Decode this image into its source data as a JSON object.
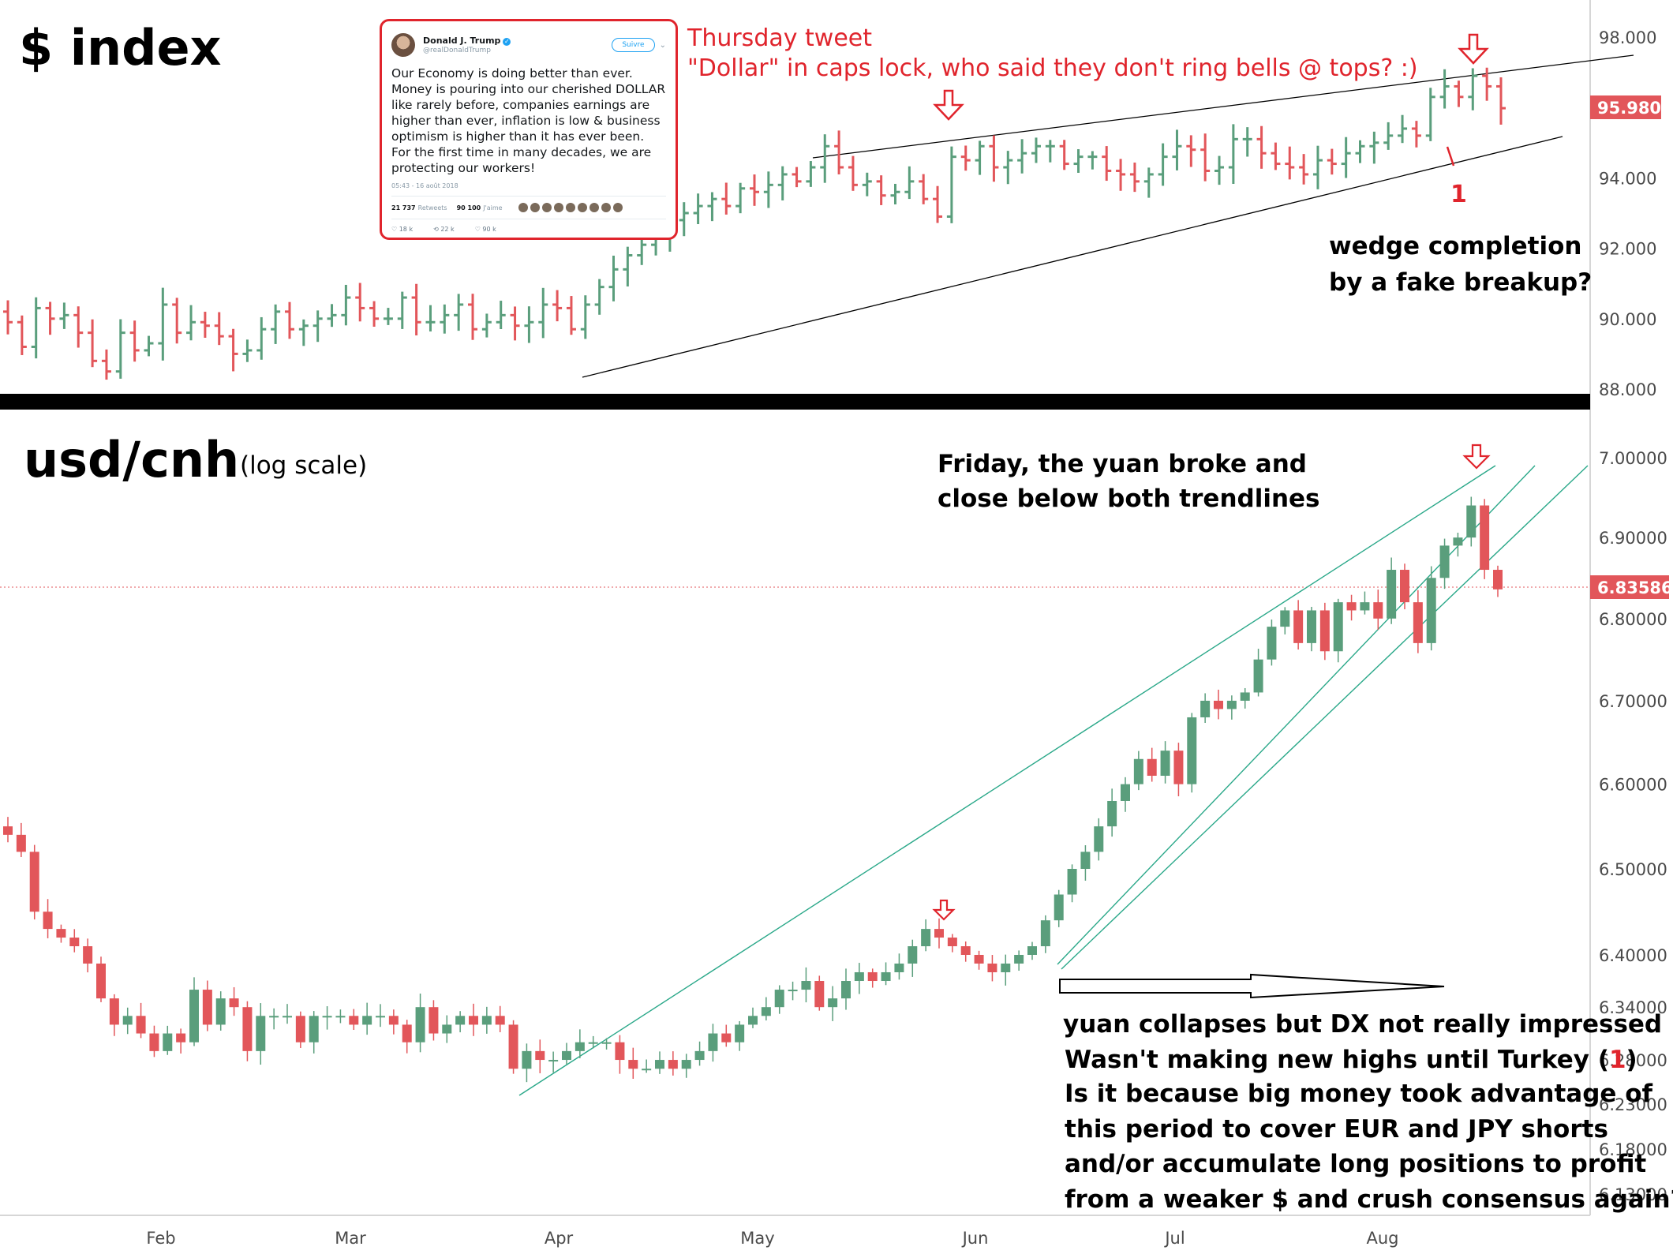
{
  "colors": {
    "up": "#5a9e7c",
    "down": "#e2565a",
    "trend_top": "#000000",
    "trend_bottom": "#2aa889",
    "annotation": "#e0242c"
  },
  "top_panel": {
    "title": "$ index",
    "price_tag": "95.980"
  },
  "bottom_panel": {
    "title": "usd/cnh",
    "subtitle": "(log scale)",
    "price_tag": "6.83586"
  },
  "annotations": {
    "thursday_line1": "Thursday tweet",
    "thursday_line2": "\"Dollar\" in caps lock, who said they don't ring bells @ tops? :)",
    "wedge_line1": "wedge completion",
    "wedge_line2": "by a fake breakup?",
    "marker_1": "1",
    "friday_line1": "Friday, the yuan broke and",
    "friday_line2": "close below both trendlines",
    "bottom_line1": "yuan collapses but DX not really impressed",
    "bottom_line2_pre": "Wasn't making new highs until Turkey (",
    "bottom_line2_num": "1",
    "bottom_line2_post": ")",
    "bottom_line3": "Is it because big money took advantage of",
    "bottom_line4": "this period to cover EUR and JPY shorts",
    "bottom_line5": "and/or accumulate long positions to profit",
    "bottom_line6": "from a weaker $ and crush consensus again?"
  },
  "tweet": {
    "name": "Donald J. Trump",
    "handle": "@realDonaldTrump",
    "follow_label": "Suivre",
    "text": "Our Economy is doing better than ever. Money is pouring into our cherished DOLLAR like rarely before, companies earnings are higher than ever, inflation is low & business optimism is higher than it has ever been. For the first time in many decades, we are protecting our workers!",
    "date": "05:43 - 16 août 2018",
    "retweets": "21 737",
    "retweets_label": "Retweets",
    "likes": "90 100",
    "likes_label": "J'aime",
    "replies_count": "18 k",
    "rt_count": "22 k",
    "like_count": "90 k"
  },
  "chart_data": [
    {
      "type": "ohlc",
      "title": "$ index",
      "x_months": [
        "Feb",
        "Mar",
        "Apr",
        "May",
        "Jun",
        "Jul",
        "Aug"
      ],
      "ylim": [
        88,
        98.6
      ],
      "y_ticks": [
        "88.000",
        "90.000",
        "92.000",
        "94.000",
        "96.000",
        "98.000"
      ],
      "last_price": 95.98,
      "closes": [
        89.9,
        89.2,
        90.3,
        90.0,
        90.1,
        89.6,
        88.8,
        88.5,
        89.6,
        89.1,
        89.3,
        90.4,
        89.6,
        89.9,
        89.8,
        89.5,
        89.0,
        89.1,
        89.7,
        90.2,
        89.7,
        89.8,
        90.0,
        90.1,
        90.6,
        90.3,
        90.0,
        90.0,
        90.6,
        89.9,
        89.9,
        90.1,
        90.4,
        89.7,
        89.9,
        90.1,
        89.8,
        89.9,
        90.4,
        90.3,
        89.7,
        90.4,
        90.9,
        91.4,
        91.8,
        92.1,
        92.4,
        92.8,
        93.0,
        93.2,
        93.4,
        93.2,
        93.7,
        93.6,
        93.8,
        94.1,
        93.9,
        94.3,
        94.9,
        94.3,
        93.8,
        93.9,
        93.5,
        93.6,
        93.9,
        93.4,
        92.9,
        94.6,
        94.5,
        94.9,
        94.3,
        94.5,
        94.7,
        94.9,
        94.9,
        94.4,
        94.6,
        94.6,
        94.2,
        94.1,
        93.9,
        94.1,
        94.6,
        94.9,
        94.8,
        94.2,
        94.3,
        95.1,
        95.1,
        94.7,
        94.4,
        94.3,
        94.1,
        94.5,
        94.4,
        94.7,
        94.9,
        95.0,
        95.2,
        95.4,
        95.2,
        96.3,
        96.6,
        96.3,
        96.9,
        96.6,
        95.98
      ]
    },
    {
      "type": "candlestick",
      "title": "usd/cnh",
      "scale": "log",
      "x_months": [
        "Feb",
        "Mar",
        "Apr",
        "May",
        "Jun",
        "Jul",
        "Aug"
      ],
      "ylim": [
        6.13,
        7.0
      ],
      "y_ticks": [
        "6.13000",
        "6.18000",
        "6.23000",
        "6.28000",
        "6.34000",
        "6.40000",
        "6.50000",
        "6.60000",
        "6.70000",
        "6.80000",
        "6.90000",
        "7.00000"
      ],
      "last_price": 6.83586,
      "closes": [
        6.54,
        6.52,
        6.45,
        6.43,
        6.42,
        6.41,
        6.39,
        6.35,
        6.32,
        6.33,
        6.31,
        6.29,
        6.31,
        6.3,
        6.36,
        6.32,
        6.35,
        6.34,
        6.29,
        6.33,
        6.33,
        6.33,
        6.3,
        6.33,
        6.33,
        6.33,
        6.32,
        6.33,
        6.33,
        6.32,
        6.3,
        6.34,
        6.31,
        6.32,
        6.33,
        6.32,
        6.33,
        6.32,
        6.27,
        6.29,
        6.28,
        6.28,
        6.29,
        6.3,
        6.3,
        6.3,
        6.28,
        6.27,
        6.27,
        6.28,
        6.27,
        6.28,
        6.29,
        6.31,
        6.3,
        6.32,
        6.33,
        6.34,
        6.36,
        6.36,
        6.37,
        6.34,
        6.35,
        6.37,
        6.38,
        6.37,
        6.38,
        6.39,
        6.41,
        6.43,
        6.42,
        6.41,
        6.4,
        6.39,
        6.38,
        6.39,
        6.4,
        6.41,
        6.44,
        6.47,
        6.5,
        6.52,
        6.55,
        6.58,
        6.6,
        6.63,
        6.61,
        6.64,
        6.6,
        6.68,
        6.7,
        6.69,
        6.7,
        6.71,
        6.75,
        6.79,
        6.81,
        6.77,
        6.81,
        6.76,
        6.82,
        6.81,
        6.82,
        6.8,
        6.86,
        6.82,
        6.77,
        6.85,
        6.89,
        6.9,
        6.94,
        6.86,
        6.83586
      ]
    }
  ]
}
